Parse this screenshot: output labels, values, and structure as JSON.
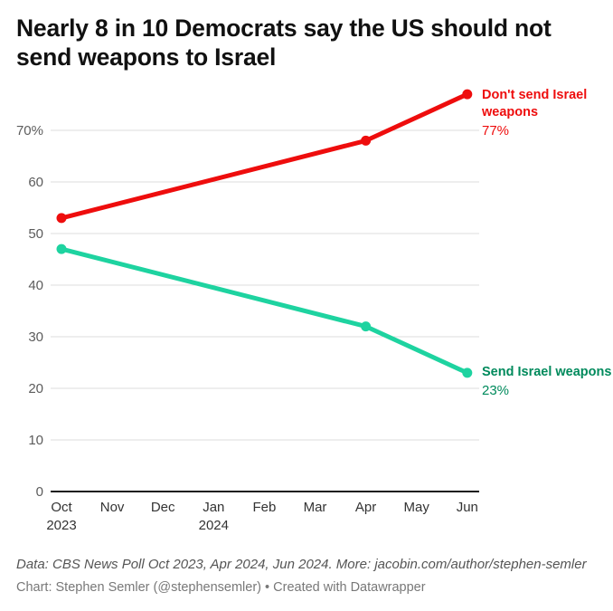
{
  "header": {
    "title": "Nearly 8 in 10 Democrats say the US should not send weapons to Israel"
  },
  "chart_data": {
    "type": "line",
    "title": "Nearly 8 in 10 Democrats say the US should not send weapons to Israel",
    "xlabel": "",
    "ylabel": "",
    "ylim": [
      0,
      80
    ],
    "grid": "horizontal",
    "legend_position": "direct-labels-right",
    "y_ticks": [
      0,
      10,
      20,
      30,
      40,
      50,
      60,
      70
    ],
    "y_top_suffix": "%",
    "x_categories": [
      {
        "label": "Oct",
        "sublabel": "2023"
      },
      {
        "label": "Nov"
      },
      {
        "label": "Dec"
      },
      {
        "label": "Jan",
        "sublabel": "2024"
      },
      {
        "label": "Feb"
      },
      {
        "label": "Mar"
      },
      {
        "label": "Apr"
      },
      {
        "label": "May"
      },
      {
        "label": "Jun"
      }
    ],
    "series": [
      {
        "name": "Don't send Israel weapons",
        "value_label": "77%",
        "color": "#ee0d0d",
        "text_color": "#ee0d0d",
        "points": [
          {
            "x": "Oct 2023",
            "x_index": 0,
            "y": 53
          },
          {
            "x": "Apr 2024",
            "x_index": 6,
            "y": 68
          },
          {
            "x": "Jun 2024",
            "x_index": 8,
            "y": 77
          }
        ]
      },
      {
        "name": "Send Israel weapons",
        "value_label": "23%",
        "color": "#1ed3a0",
        "text_color": "#008a5c",
        "points": [
          {
            "x": "Oct 2023",
            "x_index": 0,
            "y": 47
          },
          {
            "x": "Apr 2024",
            "x_index": 6,
            "y": 32
          },
          {
            "x": "Jun 2024",
            "x_index": 8,
            "y": 23
          }
        ]
      }
    ]
  },
  "footer": {
    "source_line": "Data: CBS News Poll Oct 2023, Apr 2024, Jun 2024. More: jacobin.com/author/stephen-semler",
    "credit_line": "Chart: Stephen Semler (@stephensemler) • Created with Datawrapper"
  }
}
